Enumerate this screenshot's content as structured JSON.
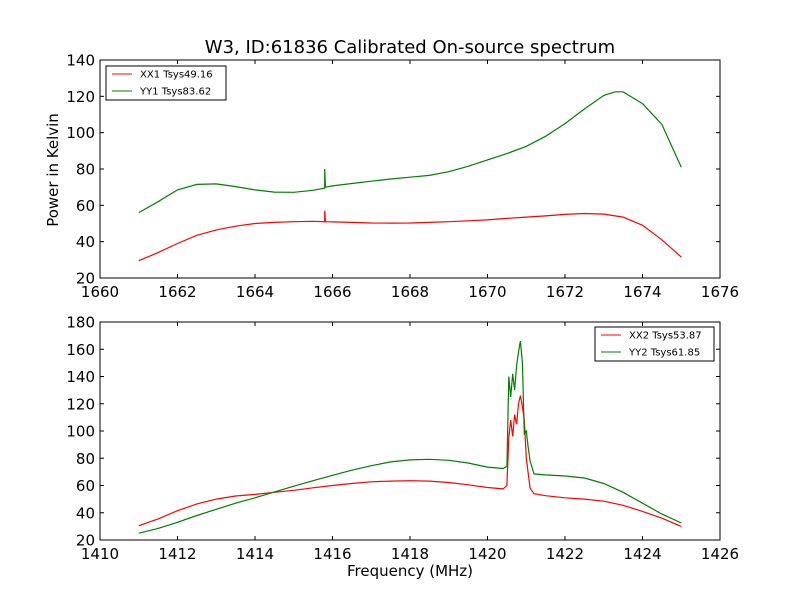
{
  "chart_data": [
    {
      "type": "line",
      "title": "W3, ID:61836 Calibrated On-source spectrum",
      "xlabel": "",
      "ylabel": "Power in Kelvin",
      "xlim": [
        1660,
        1676
      ],
      "ylim": [
        20,
        140
      ],
      "xticks": [
        "1660",
        "1662",
        "1664",
        "1666",
        "1668",
        "1670",
        "1672",
        "1674",
        "1676"
      ],
      "yticks": [
        "20",
        "40",
        "60",
        "80",
        "100",
        "120",
        "140"
      ],
      "legend_position": "top-left",
      "grid": false,
      "series": [
        {
          "name": "XX1 Tsys49.16",
          "color": "#ff0000",
          "points": [
            [
              1661,
              29.5
            ],
            [
              1661.5,
              34
            ],
            [
              1662,
              39
            ],
            [
              1662.5,
              43.5
            ],
            [
              1663,
              46.5
            ],
            [
              1663.5,
              48.5
            ],
            [
              1664,
              50
            ],
            [
              1664.5,
              50.6
            ],
            [
              1665,
              51
            ],
            [
              1665.5,
              51.2
            ],
            [
              1665.8,
              51
            ],
            [
              1665.8,
              57
            ],
            [
              1665.82,
              51
            ],
            [
              1666,
              50.9
            ],
            [
              1666.5,
              50.6
            ],
            [
              1667,
              50.3
            ],
            [
              1667.5,
              50.2
            ],
            [
              1668,
              50.3
            ],
            [
              1668.5,
              50.6
            ],
            [
              1669,
              51
            ],
            [
              1669.5,
              51.5
            ],
            [
              1670,
              52
            ],
            [
              1670.5,
              52.8
            ],
            [
              1671,
              53.5
            ],
            [
              1671.5,
              54.2
            ],
            [
              1672,
              55
            ],
            [
              1672.5,
              55.5
            ],
            [
              1673,
              55.2
            ],
            [
              1673.5,
              53.5
            ],
            [
              1674,
              49
            ],
            [
              1674.5,
              41
            ],
            [
              1675,
              31.5
            ]
          ]
        },
        {
          "name": "YY1 Tsys83.62",
          "color": "#008000",
          "points": [
            [
              1661,
              56
            ],
            [
              1661.5,
              62
            ],
            [
              1662,
              68.5
            ],
            [
              1662.5,
              71.5
            ],
            [
              1663,
              71.8
            ],
            [
              1663.5,
              70.3
            ],
            [
              1664,
              68.5
            ],
            [
              1664.5,
              67.3
            ],
            [
              1665,
              67.2
            ],
            [
              1665.5,
              68.3
            ],
            [
              1665.8,
              69.5
            ],
            [
              1665.8,
              80
            ],
            [
              1665.82,
              70
            ],
            [
              1666,
              70.7
            ],
            [
              1666.5,
              72
            ],
            [
              1667,
              73.3
            ],
            [
              1667.5,
              74.5
            ],
            [
              1668,
              75.5
            ],
            [
              1668.5,
              76.5
            ],
            [
              1669,
              78.5
            ],
            [
              1669.5,
              81.5
            ],
            [
              1670,
              85
            ],
            [
              1670.5,
              88.5
            ],
            [
              1671,
              92.5
            ],
            [
              1671.5,
              98
            ],
            [
              1672,
              105
            ],
            [
              1672.5,
              113
            ],
            [
              1673,
              120.5
            ],
            [
              1673.3,
              122.5
            ],
            [
              1673.5,
              122.5
            ],
            [
              1674,
              116
            ],
            [
              1674.5,
              104.5
            ],
            [
              1675,
              81
            ]
          ]
        }
      ]
    },
    {
      "type": "line",
      "title": "",
      "xlabel": "Frequency (MHz)",
      "ylabel": "",
      "xlim": [
        1410,
        1426
      ],
      "ylim": [
        20,
        180
      ],
      "xticks": [
        "1410",
        "1412",
        "1414",
        "1416",
        "1418",
        "1420",
        "1422",
        "1424",
        "1426"
      ],
      "yticks": [
        "20",
        "40",
        "60",
        "80",
        "100",
        "120",
        "140",
        "160",
        "180"
      ],
      "legend_position": "top-right",
      "grid": false,
      "series": [
        {
          "name": "XX2 Tsys53.87",
          "color": "#ff0000",
          "points": [
            [
              1411,
              30.5
            ],
            [
              1411.5,
              35.5
            ],
            [
              1412,
              41.5
            ],
            [
              1412.5,
              46.5
            ],
            [
              1413,
              50
            ],
            [
              1413.5,
              52.3
            ],
            [
              1414,
              53.5
            ],
            [
              1414.5,
              55
            ],
            [
              1415,
              56.5
            ],
            [
              1415.5,
              58.3
            ],
            [
              1416,
              60
            ],
            [
              1416.5,
              61.5
            ],
            [
              1417,
              62.7
            ],
            [
              1417.5,
              63.2
            ],
            [
              1418,
              63.5
            ],
            [
              1418.5,
              63.2
            ],
            [
              1419,
              62.2
            ],
            [
              1419.5,
              60.5
            ],
            [
              1420,
              58.5
            ],
            [
              1420.4,
              57.5
            ],
            [
              1420.5,
              60
            ],
            [
              1420.55,
              95
            ],
            [
              1420.6,
              108
            ],
            [
              1420.65,
              96
            ],
            [
              1420.7,
              112
            ],
            [
              1420.75,
              105
            ],
            [
              1420.8,
              120
            ],
            [
              1420.85,
              126
            ],
            [
              1420.9,
              118
            ],
            [
              1420.95,
              108
            ],
            [
              1421,
              80
            ],
            [
              1421.1,
              58
            ],
            [
              1421.2,
              54
            ],
            [
              1421.5,
              52.5
            ],
            [
              1422,
              51
            ],
            [
              1422.5,
              50
            ],
            [
              1423,
              48.5
            ],
            [
              1423.5,
              45.5
            ],
            [
              1424,
              41
            ],
            [
              1424.5,
              36
            ],
            [
              1425,
              30
            ]
          ]
        },
        {
          "name": "YY2 Tsys61.85",
          "color": "#008000",
          "points": [
            [
              1411,
              25
            ],
            [
              1411.5,
              28.5
            ],
            [
              1412,
              33
            ],
            [
              1412.5,
              38
            ],
            [
              1413,
              42.5
            ],
            [
              1413.5,
              47
            ],
            [
              1414,
              51
            ],
            [
              1414.5,
              55.3
            ],
            [
              1415,
              59.5
            ],
            [
              1415.5,
              63.5
            ],
            [
              1416,
              67.5
            ],
            [
              1416.5,
              71.2
            ],
            [
              1417,
              74.5
            ],
            [
              1417.5,
              77.3
            ],
            [
              1418,
              78.8
            ],
            [
              1418.5,
              79.2
            ],
            [
              1419,
              78.5
            ],
            [
              1419.5,
              76.5
            ],
            [
              1420,
              73.5
            ],
            [
              1420.4,
              72.5
            ],
            [
              1420.5,
              74
            ],
            [
              1420.55,
              140
            ],
            [
              1420.6,
              125
            ],
            [
              1420.65,
              142
            ],
            [
              1420.7,
              130
            ],
            [
              1420.75,
              148
            ],
            [
              1420.8,
              158
            ],
            [
              1420.85,
              166
            ],
            [
              1420.9,
              150
            ],
            [
              1420.95,
              98
            ],
            [
              1421,
              100
            ],
            [
              1421.05,
              88
            ],
            [
              1421.1,
              78
            ],
            [
              1421.2,
              68.5
            ],
            [
              1421.5,
              67.8
            ],
            [
              1422,
              67
            ],
            [
              1422.5,
              65.5
            ],
            [
              1423,
              61.5
            ],
            [
              1423.5,
              55
            ],
            [
              1424,
              47
            ],
            [
              1424.5,
              39
            ],
            [
              1425,
              32.5
            ]
          ]
        }
      ]
    }
  ]
}
